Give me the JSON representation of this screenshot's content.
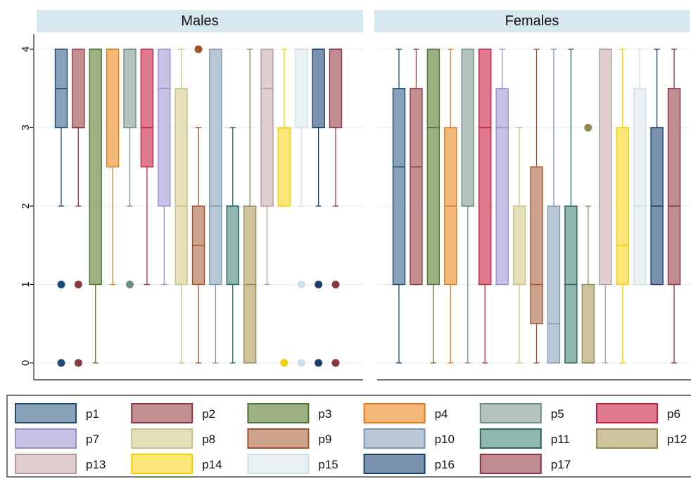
{
  "chart_data": {
    "type": "box",
    "title": "",
    "xlabel": "",
    "ylabel": "",
    "ylim": [
      0,
      4
    ],
    "yticks": [
      0,
      1,
      2,
      3,
      4
    ],
    "grid": true,
    "legend_position": "bottom",
    "series": [
      {
        "name": "p1",
        "color": "#8AA1BA",
        "edge": "#1E4A72"
      },
      {
        "name": "p2",
        "color": "#C48F92",
        "edge": "#8A3A42"
      },
      {
        "name": "p3",
        "color": "#9DB083",
        "edge": "#4E7431"
      },
      {
        "name": "p4",
        "color": "#F2B877",
        "edge": "#E07B1D"
      },
      {
        "name": "p5",
        "color": "#B4C4BD",
        "edge": "#6E8F84"
      },
      {
        "name": "p6",
        "color": "#E07A8E",
        "edge": "#C0213F"
      },
      {
        "name": "p7",
        "color": "#C8C2E4",
        "edge": "#978ED0"
      },
      {
        "name": "p8",
        "color": "#E4E0BA",
        "edge": "#C9C08A"
      },
      {
        "name": "p9",
        "color": "#CEA38E",
        "edge": "#A2522B"
      },
      {
        "name": "p10",
        "color": "#BAC7D6",
        "edge": "#7E97B0"
      },
      {
        "name": "p11",
        "color": "#91B6AE",
        "edge": "#246B5E"
      },
      {
        "name": "p12",
        "color": "#CFC39F",
        "edge": "#968A4F"
      },
      {
        "name": "p13",
        "color": "#E0CDCD",
        "edge": "#B69A9A"
      },
      {
        "name": "p14",
        "color": "#FBE67A",
        "edge": "#F6CF00"
      },
      {
        "name": "p15",
        "color": "#E9F1F4",
        "edge": "#CDE0E6"
      },
      {
        "name": "p16",
        "color": "#7B93AE",
        "edge": "#17406A"
      },
      {
        "name": "p17",
        "color": "#C08D92",
        "edge": "#8B3540"
      }
    ],
    "panels": [
      {
        "title": "Males",
        "boxes": [
          {
            "q1": 3,
            "median": 3.5,
            "q3": 4,
            "whisker_low": 2,
            "whisker_high": 4,
            "outliers": [
              1,
              0
            ]
          },
          {
            "q1": 3,
            "median": 3,
            "q3": 4,
            "whisker_low": 2,
            "whisker_high": 4,
            "outliers": [
              1,
              0
            ]
          },
          {
            "q1": 1,
            "median": 4,
            "q3": 4,
            "whisker_low": 0,
            "whisker_high": 4,
            "outliers": []
          },
          {
            "q1": 2.5,
            "median": 4,
            "q3": 4,
            "whisker_low": 1,
            "whisker_high": 4,
            "outliers": []
          },
          {
            "q1": 3,
            "median": 4,
            "q3": 4,
            "whisker_low": 2,
            "whisker_high": 4,
            "outliers": [
              1
            ]
          },
          {
            "q1": 2.5,
            "median": 3,
            "q3": 4,
            "whisker_low": 1,
            "whisker_high": 4,
            "outliers": []
          },
          {
            "q1": 2,
            "median": 3.5,
            "q3": 4,
            "whisker_low": 1,
            "whisker_high": 4,
            "outliers": []
          },
          {
            "q1": 1,
            "median": 2,
            "q3": 3.5,
            "whisker_low": 0,
            "whisker_high": 4,
            "outliers": []
          },
          {
            "q1": 1,
            "median": 1.5,
            "q3": 2,
            "whisker_low": 0,
            "whisker_high": 3,
            "outliers": [
              4
            ]
          },
          {
            "q1": 1,
            "median": 2,
            "q3": 4,
            "whisker_low": 0,
            "whisker_high": 4,
            "outliers": []
          },
          {
            "q1": 1,
            "median": 2,
            "q3": 2,
            "whisker_low": 0,
            "whisker_high": 3,
            "outliers": []
          },
          {
            "q1": 0,
            "median": 1,
            "q3": 2,
            "whisker_low": 0,
            "whisker_high": 4,
            "outliers": []
          },
          {
            "q1": 2,
            "median": 3.5,
            "q3": 4,
            "whisker_low": 1,
            "whisker_high": 4,
            "outliers": []
          },
          {
            "q1": 2,
            "median": 3,
            "q3": 3,
            "whisker_low": 2,
            "whisker_high": 4,
            "outliers": [
              0
            ]
          },
          {
            "q1": 3,
            "median": 4,
            "q3": 4,
            "whisker_low": 2,
            "whisker_high": 4,
            "outliers": [
              1,
              0
            ]
          },
          {
            "q1": 3,
            "median": 4,
            "q3": 4,
            "whisker_low": 2,
            "whisker_high": 4,
            "outliers": [
              1,
              0
            ]
          },
          {
            "q1": 3,
            "median": 4,
            "q3": 4,
            "whisker_low": 2,
            "whisker_high": 4,
            "outliers": [
              1,
              0
            ]
          }
        ]
      },
      {
        "title": "Females",
        "boxes": [
          {
            "q1": 1,
            "median": 2.5,
            "q3": 3.5,
            "whisker_low": 0,
            "whisker_high": 4,
            "outliers": []
          },
          {
            "q1": 1,
            "median": 2.5,
            "q3": 3.5,
            "whisker_low": 1,
            "whisker_high": 4,
            "outliers": []
          },
          {
            "q1": 1,
            "median": 3,
            "q3": 4,
            "whisker_low": 0,
            "whisker_high": 4,
            "outliers": []
          },
          {
            "q1": 1,
            "median": 2,
            "q3": 3,
            "whisker_low": 0,
            "whisker_high": 4,
            "outliers": []
          },
          {
            "q1": 2,
            "median": 2,
            "q3": 4,
            "whisker_low": 0,
            "whisker_high": 4,
            "outliers": []
          },
          {
            "q1": 1,
            "median": 3,
            "q3": 4,
            "whisker_low": 0,
            "whisker_high": 4,
            "outliers": []
          },
          {
            "q1": 1,
            "median": 3,
            "q3": 3.5,
            "whisker_low": 1,
            "whisker_high": 4,
            "outliers": []
          },
          {
            "q1": 1,
            "median": 1,
            "q3": 2,
            "whisker_low": 0,
            "whisker_high": 3,
            "outliers": []
          },
          {
            "q1": 0.5,
            "median": 1,
            "q3": 2.5,
            "whisker_low": 0,
            "whisker_high": 4,
            "outliers": []
          },
          {
            "q1": 0,
            "median": 0.5,
            "q3": 2,
            "whisker_low": 0,
            "whisker_high": 4,
            "outliers": []
          },
          {
            "q1": 0,
            "median": 1,
            "q3": 2,
            "whisker_low": 0,
            "whisker_high": 4,
            "outliers": []
          },
          {
            "q1": 0,
            "median": 0,
            "q3": 1,
            "whisker_low": 0,
            "whisker_high": 2,
            "outliers": [
              3
            ]
          },
          {
            "q1": 1,
            "median": 4,
            "q3": 4,
            "whisker_low": 0,
            "whisker_high": 4,
            "outliers": []
          },
          {
            "q1": 1,
            "median": 1.5,
            "q3": 3,
            "whisker_low": 0,
            "whisker_high": 4,
            "outliers": []
          },
          {
            "q1": 1,
            "median": 2,
            "q3": 3.5,
            "whisker_low": 1,
            "whisker_high": 4,
            "outliers": []
          },
          {
            "q1": 1,
            "median": 2,
            "q3": 3,
            "whisker_low": 1,
            "whisker_high": 4,
            "outliers": []
          },
          {
            "q1": 1,
            "median": 2,
            "q3": 3.5,
            "whisker_low": 0,
            "whisker_high": 4,
            "outliers": []
          }
        ]
      }
    ]
  }
}
